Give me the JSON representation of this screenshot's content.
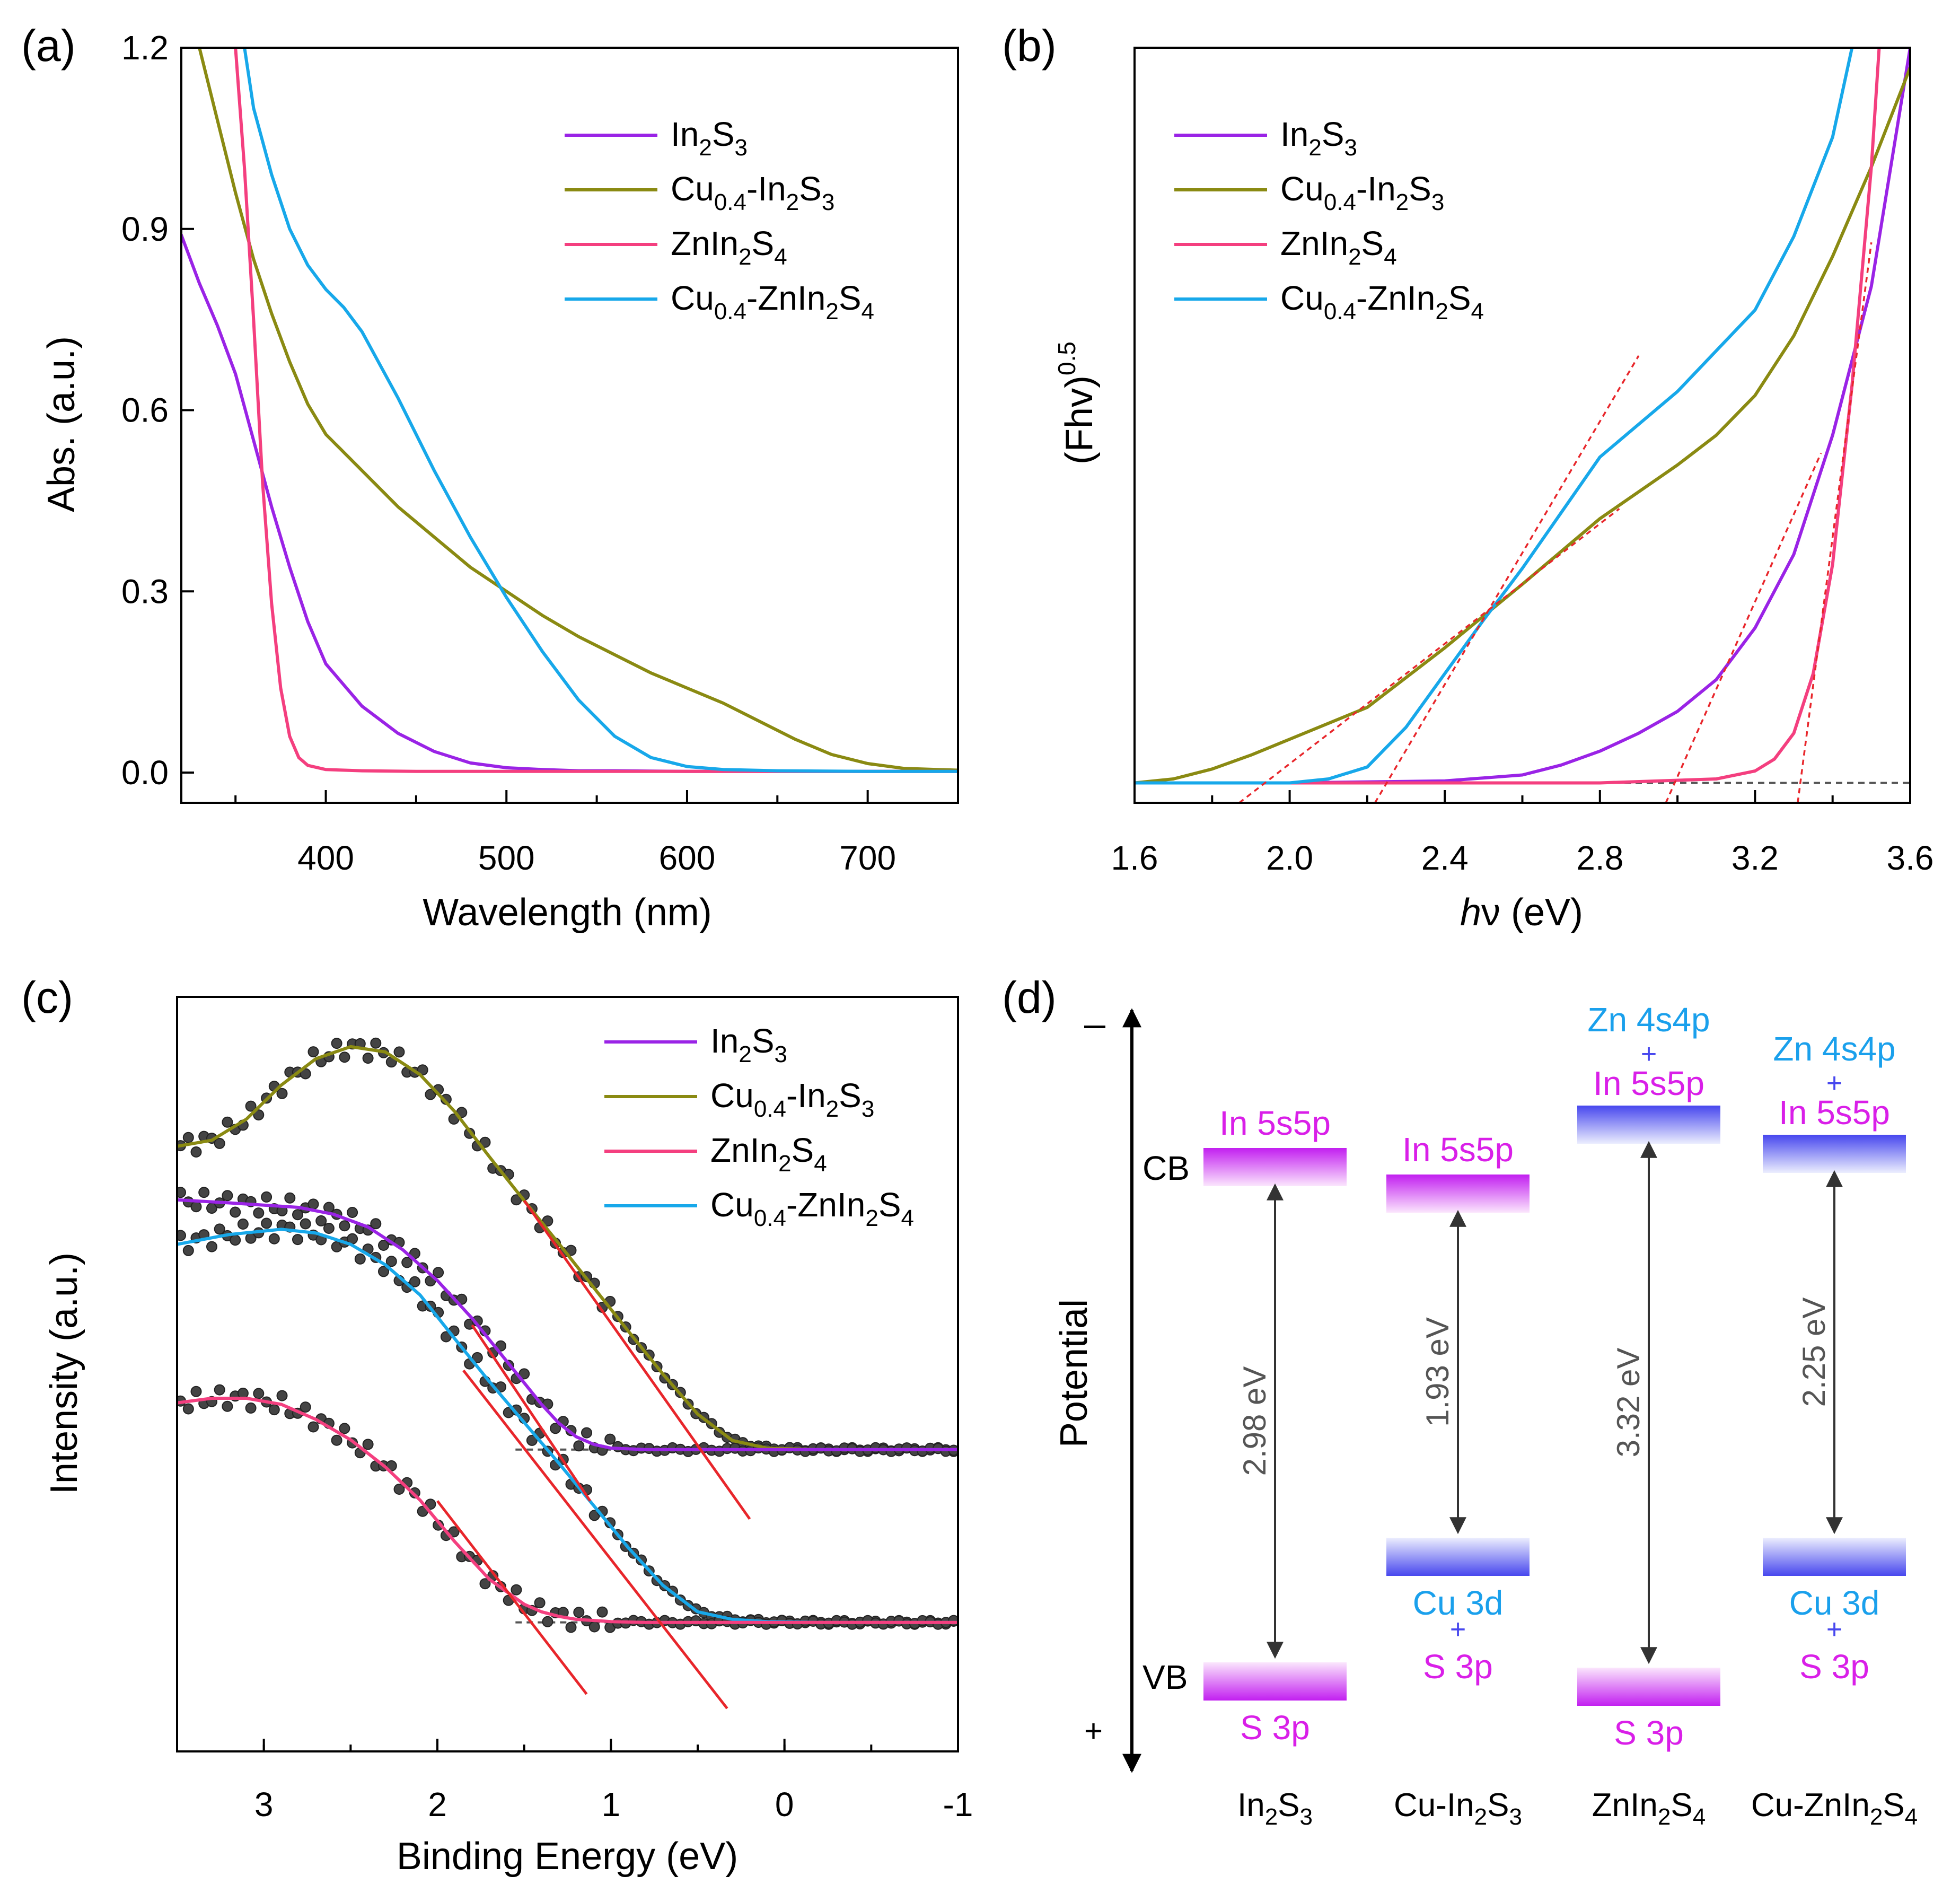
{
  "colors": {
    "In2S3": "#9a23e6",
    "Cu-In2S3": "#8a8a12",
    "ZnIn2S4": "#f43f7f",
    "Cu-ZnIn2S4": "#17a8ea",
    "fit": "#e8262b",
    "cb_purple": "#c21ff0",
    "vb_blue": "#4747ee",
    "text_blue": "#1aa0ec",
    "text_magenta": "#d91fe8"
  },
  "chart_data": [
    {
      "panel": "(a)",
      "type": "line",
      "xlabel": "Wavelength (nm)",
      "ylabel": "Abs. (a.u.)",
      "xlim": [
        320,
        750
      ],
      "ylim": [
        -0.05,
        1.2
      ],
      "xticks": [
        400,
        500,
        600,
        700
      ],
      "xtick_labels": [
        "400",
        "500",
        "600",
        "700"
      ],
      "yticks": [
        0.0,
        0.3,
        0.6,
        0.9,
        1.2
      ],
      "ytick_labels": [
        "0.0",
        "0.3",
        "0.6",
        "0.9",
        "1.2"
      ],
      "legend": [
        {
          "base": "In",
          "sub1": "2",
          "mid": "S",
          "sub2": "3",
          "pre": "",
          "sub0": ""
        },
        {
          "pre": "Cu",
          "sub0": "0.4",
          "base": "-In",
          "sub1": "2",
          "mid": "S",
          "sub2": "3"
        },
        {
          "pre": "",
          "sub0": "",
          "base": "ZnIn",
          "sub1": "2",
          "mid": "S",
          "sub2": "4"
        },
        {
          "pre": "Cu",
          "sub0": "0.4",
          "base": "-ZnIn",
          "sub1": "2",
          "mid": "S",
          "sub2": "4"
        }
      ],
      "series": [
        {
          "name": "In2S3",
          "x": [
            320,
            330,
            340,
            350,
            360,
            370,
            380,
            390,
            400,
            420,
            440,
            460,
            480,
            500,
            520,
            540,
            560,
            600,
            650,
            700,
            750
          ],
          "y": [
            0.89,
            0.81,
            0.74,
            0.66,
            0.55,
            0.44,
            0.34,
            0.25,
            0.18,
            0.11,
            0.065,
            0.035,
            0.016,
            0.008,
            0.005,
            0.003,
            0.003,
            0.002,
            0.002,
            0.002,
            0.002
          ]
        },
        {
          "name": "Cu-In2S3",
          "x": [
            330,
            340,
            350,
            360,
            370,
            380,
            390,
            400,
            420,
            440,
            460,
            480,
            500,
            520,
            540,
            560,
            580,
            600,
            620,
            640,
            660,
            680,
            700,
            720,
            750
          ],
          "y": [
            1.2,
            1.08,
            0.96,
            0.85,
            0.76,
            0.68,
            0.61,
            0.56,
            0.5,
            0.44,
            0.39,
            0.34,
            0.3,
            0.26,
            0.225,
            0.195,
            0.165,
            0.14,
            0.115,
            0.085,
            0.055,
            0.03,
            0.015,
            0.007,
            0.004
          ]
        },
        {
          "name": "ZnIn2S4",
          "x": [
            350,
            355,
            360,
            365,
            370,
            375,
            380,
            385,
            390,
            400,
            420,
            450,
            500,
            600,
            750
          ],
          "y": [
            1.2,
            1.0,
            0.75,
            0.48,
            0.28,
            0.14,
            0.06,
            0.025,
            0.012,
            0.005,
            0.003,
            0.002,
            0.002,
            0.002,
            0.002
          ]
        },
        {
          "name": "Cu-ZnIn2S4",
          "x": [
            355,
            360,
            370,
            380,
            390,
            400,
            410,
            420,
            440,
            460,
            480,
            500,
            520,
            540,
            560,
            580,
            600,
            620,
            650,
            700,
            750
          ],
          "y": [
            1.2,
            1.1,
            0.99,
            0.9,
            0.84,
            0.8,
            0.77,
            0.73,
            0.62,
            0.5,
            0.39,
            0.29,
            0.2,
            0.12,
            0.06,
            0.025,
            0.01,
            0.005,
            0.003,
            0.002,
            0.002
          ]
        }
      ]
    },
    {
      "panel": "(b)",
      "type": "line",
      "xlabel_italic": "h",
      "xlabel_nu": "ν",
      "xlabel_rest": " (eV)",
      "ylabel": "(Fhv)",
      "ylabel_sup": "0.5",
      "xlim": [
        1.6,
        3.6
      ],
      "ylim": [
        -0.1,
        3.7
      ],
      "xticks": [
        1.6,
        2.0,
        2.4,
        2.8,
        3.2,
        3.6
      ],
      "xtick_labels": [
        "1.6",
        "2.0",
        "2.4",
        "2.8",
        "3.2",
        "3.6"
      ],
      "baseline_y": 0.0,
      "series": [
        {
          "name": "In2S3",
          "x": [
            1.6,
            2.0,
            2.4,
            2.6,
            2.7,
            2.8,
            2.9,
            3.0,
            3.1,
            3.2,
            3.3,
            3.4,
            3.5,
            3.6
          ],
          "y": [
            0.0,
            0.0,
            0.01,
            0.04,
            0.09,
            0.16,
            0.25,
            0.36,
            0.52,
            0.78,
            1.15,
            1.75,
            2.5,
            3.7
          ]
        },
        {
          "name": "Cu-In2S3",
          "x": [
            1.6,
            1.7,
            1.8,
            1.9,
            2.0,
            2.2,
            2.4,
            2.6,
            2.8,
            3.0,
            3.1,
            3.2,
            3.3,
            3.4,
            3.5,
            3.6
          ],
          "y": [
            0.0,
            0.02,
            0.07,
            0.14,
            0.22,
            0.38,
            0.68,
            1.0,
            1.33,
            1.6,
            1.75,
            1.95,
            2.25,
            2.65,
            3.1,
            3.6
          ]
        },
        {
          "name": "ZnIn2S4",
          "x": [
            1.6,
            2.8,
            3.1,
            3.2,
            3.25,
            3.3,
            3.35,
            3.4,
            3.45,
            3.5,
            3.52
          ],
          "y": [
            0.0,
            0.0,
            0.02,
            0.06,
            0.12,
            0.25,
            0.55,
            1.1,
            2.0,
            3.1,
            3.7
          ]
        },
        {
          "name": "Cu-ZnIn2S4",
          "x": [
            1.6,
            2.0,
            2.1,
            2.2,
            2.3,
            2.4,
            2.5,
            2.6,
            2.7,
            2.8,
            3.0,
            3.2,
            3.3,
            3.4,
            3.45
          ],
          "y": [
            0.0,
            0.0,
            0.02,
            0.08,
            0.28,
            0.55,
            0.82,
            1.08,
            1.36,
            1.64,
            1.97,
            2.38,
            2.75,
            3.25,
            3.7
          ]
        }
      ],
      "tangent_lines": [
        {
          "name": "Cu-In2S3",
          "x": [
            1.87,
            2.85
          ],
          "y": [
            -0.1,
            1.38
          ]
        },
        {
          "name": "Cu-ZnIn2S4",
          "x": [
            2.22,
            2.9
          ],
          "y": [
            -0.1,
            2.15
          ]
        },
        {
          "name": "In2S3",
          "x": [
            2.97,
            3.37
          ],
          "y": [
            -0.1,
            1.66
          ]
        },
        {
          "name": "ZnIn2S4",
          "x": [
            3.31,
            3.5
          ],
          "y": [
            -0.1,
            2.72
          ]
        }
      ]
    },
    {
      "panel": "(c)",
      "type": "scatter+line",
      "xlabel": "Binding Energy (eV)",
      "ylabel": "Intensity (a.u.)",
      "xlim": [
        3.5,
        -1.0
      ],
      "ylim": [
        0,
        10
      ],
      "xticks": [
        3,
        2,
        1,
        0,
        -1
      ],
      "xtick_labels": [
        "3",
        "2",
        "1",
        "0",
        "-1"
      ],
      "series": [
        {
          "name": "Cu-In2S3",
          "x": [
            3.5,
            3.3,
            3.1,
            2.9,
            2.7,
            2.5,
            2.3,
            2.1,
            1.9,
            1.7,
            1.5,
            1.3,
            1.1,
            0.9,
            0.7,
            0.5,
            0.3,
            0.1,
            -0.2,
            -1.0
          ],
          "y": [
            8.02,
            8.1,
            8.38,
            8.83,
            9.18,
            9.34,
            9.27,
            8.97,
            8.48,
            7.88,
            7.3,
            6.73,
            6.15,
            5.57,
            5.0,
            4.47,
            4.12,
            4.02,
            4.0,
            4.0
          ]
        },
        {
          "name": "In2S3",
          "x": [
            3.5,
            3.2,
            2.8,
            2.6,
            2.4,
            2.2,
            2.0,
            1.8,
            1.6,
            1.4,
            1.3,
            1.2,
            1.1,
            1.0,
            0.8,
            0.5,
            0.0,
            -1.0
          ],
          "y": [
            7.31,
            7.27,
            7.21,
            7.12,
            6.95,
            6.65,
            6.24,
            5.74,
            5.17,
            4.6,
            4.35,
            4.17,
            4.07,
            4.02,
            4.0,
            4.0,
            4.0,
            4.0
          ]
        },
        {
          "name": "Cu-ZnIn2S4",
          "x": [
            3.5,
            3.2,
            2.9,
            2.7,
            2.5,
            2.3,
            2.1,
            1.9,
            1.7,
            1.5,
            1.3,
            1.1,
            0.9,
            0.7,
            0.5,
            0.3,
            0.1,
            -0.2,
            -1.0
          ],
          "y": [
            6.72,
            6.85,
            6.92,
            6.87,
            6.72,
            6.45,
            6.05,
            5.47,
            4.9,
            4.36,
            3.82,
            3.26,
            2.7,
            2.2,
            1.85,
            1.75,
            1.72,
            1.71,
            1.71
          ]
        },
        {
          "name": "ZnIn2S4",
          "x": [
            3.5,
            3.3,
            3.1,
            2.9,
            2.7,
            2.5,
            2.3,
            2.1,
            1.9,
            1.7,
            1.5,
            1.4,
            1.3,
            1.2,
            1.0,
            0.8,
            0.5,
            0.0,
            -1.0
          ],
          "y": [
            4.62,
            4.68,
            4.68,
            4.6,
            4.4,
            4.13,
            3.77,
            3.33,
            2.78,
            2.28,
            1.95,
            1.85,
            1.79,
            1.75,
            1.72,
            1.71,
            1.71,
            1.71,
            1.71
          ]
        }
      ],
      "baselines": [
        {
          "x": [
            1.55,
            -1.0
          ],
          "y": 4.0
        },
        {
          "x": [
            1.55,
            -1.0
          ],
          "y": 1.71
        }
      ],
      "edge_lines": [
        {
          "x": [
            1.5,
            0.2
          ],
          "y": [
            7.3,
            3.08
          ]
        },
        {
          "x": [
            1.8,
            1.12
          ],
          "y": [
            5.65,
            3.32
          ]
        },
        {
          "x": [
            1.85,
            0.33
          ],
          "y": [
            5.05,
            0.57
          ]
        },
        {
          "x": [
            2.0,
            1.14
          ],
          "y": [
            3.32,
            0.76
          ]
        }
      ]
    }
  ],
  "panel_d": {
    "label": "(d)",
    "axis_title": "Potential",
    "minus_sign": "–",
    "plus_sign": "+",
    "cb_tag": "CB",
    "vb_tag": "VB",
    "materials": [
      {
        "name_pre": "In",
        "name_sub1": "2",
        "name_mid": "S",
        "name_sub2": "3",
        "cb_line1": "In 5s5p",
        "cb_plus": "",
        "cb_line2": "",
        "gap": "2.98 eV",
        "vb_line1": "",
        "vb_plus": "",
        "vb_line2": "S 3p"
      },
      {
        "name_pre": "Cu-In",
        "name_sub1": "2",
        "name_mid": "S",
        "name_sub2": "3",
        "cb_line1": "In 5s5p",
        "cb_plus": "",
        "cb_line2": "",
        "gap": "1.93 eV",
        "vb_line1": "Cu 3d",
        "vb_plus": "+",
        "vb_line2": "S 3p"
      },
      {
        "name_pre": "ZnIn",
        "name_sub1": "2",
        "name_mid": "S",
        "name_sub2": "4",
        "cb_line1": "Zn 4s4p",
        "cb_plus": "+",
        "cb_line2": "In 5s5p",
        "gap": "3.32 eV",
        "vb_line1": "",
        "vb_plus": "",
        "vb_line2": "S 3p"
      },
      {
        "name_pre": "Cu-ZnIn",
        "name_sub1": "2",
        "name_mid": "S",
        "name_sub2": "4",
        "cb_line1": "Zn 4s4p",
        "cb_plus": "+",
        "cb_line2": "In 5s5p",
        "gap": "2.25 eV",
        "vb_line1": "Cu 3d",
        "vb_plus": "+",
        "vb_line2": "S 3p"
      }
    ]
  }
}
